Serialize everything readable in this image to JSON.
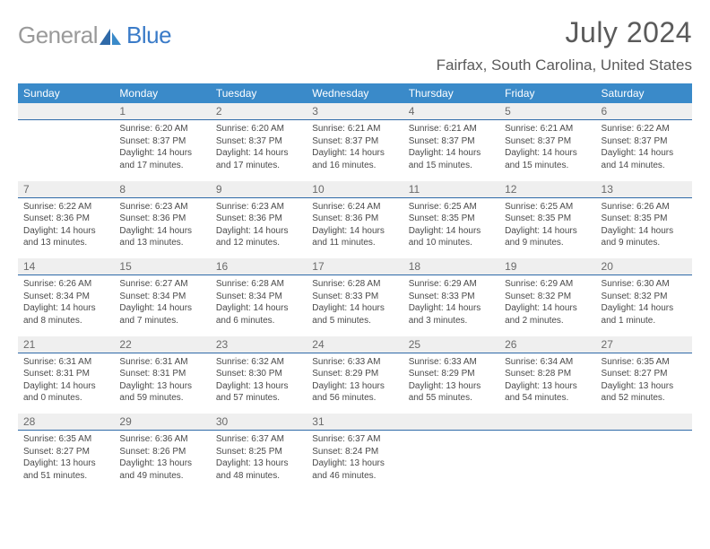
{
  "logo": {
    "part1": "General",
    "part2": "Blue"
  },
  "title": "July 2024",
  "location": "Fairfax, South Carolina, United States",
  "colors": {
    "header_bg": "#3a8ac9",
    "header_text": "#ffffff",
    "daynum_bg": "#efefef",
    "daynum_border": "#2f6aa8",
    "text": "#4a4a4a",
    "logo_gray": "#9a9a9a",
    "logo_blue": "#3a7bc8"
  },
  "typography": {
    "title_fontsize": 32,
    "location_fontsize": 17,
    "header_fontsize": 12,
    "daynum_fontsize": 12,
    "cell_fontsize": 10
  },
  "day_names": [
    "Sunday",
    "Monday",
    "Tuesday",
    "Wednesday",
    "Thursday",
    "Friday",
    "Saturday"
  ],
  "weeks": [
    [
      null,
      {
        "n": "1",
        "l1": "Sunrise: 6:20 AM",
        "l2": "Sunset: 8:37 PM",
        "l3": "Daylight: 14 hours",
        "l4": "and 17 minutes."
      },
      {
        "n": "2",
        "l1": "Sunrise: 6:20 AM",
        "l2": "Sunset: 8:37 PM",
        "l3": "Daylight: 14 hours",
        "l4": "and 17 minutes."
      },
      {
        "n": "3",
        "l1": "Sunrise: 6:21 AM",
        "l2": "Sunset: 8:37 PM",
        "l3": "Daylight: 14 hours",
        "l4": "and 16 minutes."
      },
      {
        "n": "4",
        "l1": "Sunrise: 6:21 AM",
        "l2": "Sunset: 8:37 PM",
        "l3": "Daylight: 14 hours",
        "l4": "and 15 minutes."
      },
      {
        "n": "5",
        "l1": "Sunrise: 6:21 AM",
        "l2": "Sunset: 8:37 PM",
        "l3": "Daylight: 14 hours",
        "l4": "and 15 minutes."
      },
      {
        "n": "6",
        "l1": "Sunrise: 6:22 AM",
        "l2": "Sunset: 8:37 PM",
        "l3": "Daylight: 14 hours",
        "l4": "and 14 minutes."
      }
    ],
    [
      {
        "n": "7",
        "l1": "Sunrise: 6:22 AM",
        "l2": "Sunset: 8:36 PM",
        "l3": "Daylight: 14 hours",
        "l4": "and 13 minutes."
      },
      {
        "n": "8",
        "l1": "Sunrise: 6:23 AM",
        "l2": "Sunset: 8:36 PM",
        "l3": "Daylight: 14 hours",
        "l4": "and 13 minutes."
      },
      {
        "n": "9",
        "l1": "Sunrise: 6:23 AM",
        "l2": "Sunset: 8:36 PM",
        "l3": "Daylight: 14 hours",
        "l4": "and 12 minutes."
      },
      {
        "n": "10",
        "l1": "Sunrise: 6:24 AM",
        "l2": "Sunset: 8:36 PM",
        "l3": "Daylight: 14 hours",
        "l4": "and 11 minutes."
      },
      {
        "n": "11",
        "l1": "Sunrise: 6:25 AM",
        "l2": "Sunset: 8:35 PM",
        "l3": "Daylight: 14 hours",
        "l4": "and 10 minutes."
      },
      {
        "n": "12",
        "l1": "Sunrise: 6:25 AM",
        "l2": "Sunset: 8:35 PM",
        "l3": "Daylight: 14 hours",
        "l4": "and 9 minutes."
      },
      {
        "n": "13",
        "l1": "Sunrise: 6:26 AM",
        "l2": "Sunset: 8:35 PM",
        "l3": "Daylight: 14 hours",
        "l4": "and 9 minutes."
      }
    ],
    [
      {
        "n": "14",
        "l1": "Sunrise: 6:26 AM",
        "l2": "Sunset: 8:34 PM",
        "l3": "Daylight: 14 hours",
        "l4": "and 8 minutes."
      },
      {
        "n": "15",
        "l1": "Sunrise: 6:27 AM",
        "l2": "Sunset: 8:34 PM",
        "l3": "Daylight: 14 hours",
        "l4": "and 7 minutes."
      },
      {
        "n": "16",
        "l1": "Sunrise: 6:28 AM",
        "l2": "Sunset: 8:34 PM",
        "l3": "Daylight: 14 hours",
        "l4": "and 6 minutes."
      },
      {
        "n": "17",
        "l1": "Sunrise: 6:28 AM",
        "l2": "Sunset: 8:33 PM",
        "l3": "Daylight: 14 hours",
        "l4": "and 5 minutes."
      },
      {
        "n": "18",
        "l1": "Sunrise: 6:29 AM",
        "l2": "Sunset: 8:33 PM",
        "l3": "Daylight: 14 hours",
        "l4": "and 3 minutes."
      },
      {
        "n": "19",
        "l1": "Sunrise: 6:29 AM",
        "l2": "Sunset: 8:32 PM",
        "l3": "Daylight: 14 hours",
        "l4": "and 2 minutes."
      },
      {
        "n": "20",
        "l1": "Sunrise: 6:30 AM",
        "l2": "Sunset: 8:32 PM",
        "l3": "Daylight: 14 hours",
        "l4": "and 1 minute."
      }
    ],
    [
      {
        "n": "21",
        "l1": "Sunrise: 6:31 AM",
        "l2": "Sunset: 8:31 PM",
        "l3": "Daylight: 14 hours",
        "l4": "and 0 minutes."
      },
      {
        "n": "22",
        "l1": "Sunrise: 6:31 AM",
        "l2": "Sunset: 8:31 PM",
        "l3": "Daylight: 13 hours",
        "l4": "and 59 minutes."
      },
      {
        "n": "23",
        "l1": "Sunrise: 6:32 AM",
        "l2": "Sunset: 8:30 PM",
        "l3": "Daylight: 13 hours",
        "l4": "and 57 minutes."
      },
      {
        "n": "24",
        "l1": "Sunrise: 6:33 AM",
        "l2": "Sunset: 8:29 PM",
        "l3": "Daylight: 13 hours",
        "l4": "and 56 minutes."
      },
      {
        "n": "25",
        "l1": "Sunrise: 6:33 AM",
        "l2": "Sunset: 8:29 PM",
        "l3": "Daylight: 13 hours",
        "l4": "and 55 minutes."
      },
      {
        "n": "26",
        "l1": "Sunrise: 6:34 AM",
        "l2": "Sunset: 8:28 PM",
        "l3": "Daylight: 13 hours",
        "l4": "and 54 minutes."
      },
      {
        "n": "27",
        "l1": "Sunrise: 6:35 AM",
        "l2": "Sunset: 8:27 PM",
        "l3": "Daylight: 13 hours",
        "l4": "and 52 minutes."
      }
    ],
    [
      {
        "n": "28",
        "l1": "Sunrise: 6:35 AM",
        "l2": "Sunset: 8:27 PM",
        "l3": "Daylight: 13 hours",
        "l4": "and 51 minutes."
      },
      {
        "n": "29",
        "l1": "Sunrise: 6:36 AM",
        "l2": "Sunset: 8:26 PM",
        "l3": "Daylight: 13 hours",
        "l4": "and 49 minutes."
      },
      {
        "n": "30",
        "l1": "Sunrise: 6:37 AM",
        "l2": "Sunset: 8:25 PM",
        "l3": "Daylight: 13 hours",
        "l4": "and 48 minutes."
      },
      {
        "n": "31",
        "l1": "Sunrise: 6:37 AM",
        "l2": "Sunset: 8:24 PM",
        "l3": "Daylight: 13 hours",
        "l4": "and 46 minutes."
      },
      null,
      null,
      null
    ]
  ]
}
